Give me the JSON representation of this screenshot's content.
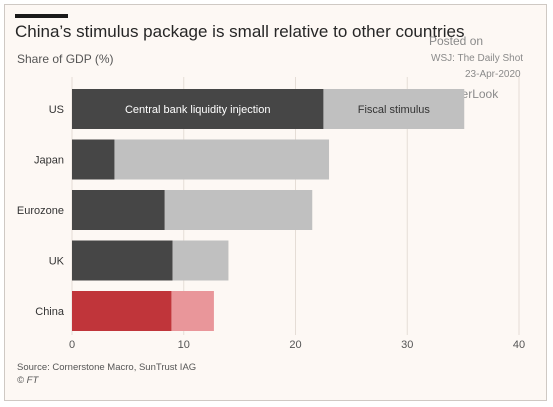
{
  "header": {
    "title": "China’s stimulus package is small relative to other countries",
    "subtitle": "Share of GDP (%)"
  },
  "watermark": {
    "line1": "Posted on",
    "line2": "WSJ: The Daily Shot",
    "line3": "23-Apr-2020",
    "line4": "@SoberLook"
  },
  "footer": {
    "source": "Source: Cornerstone Macro, SunTrust IAG",
    "copyright": "© FT"
  },
  "colors": {
    "cb_default": "#464646",
    "fiscal_default": "#c0c0c0",
    "cb_highlight": "#c0353a",
    "fiscal_highlight": "#e9969a",
    "grid": "#e5ddd6"
  },
  "chart_data": {
    "type": "bar",
    "orientation": "horizontal",
    "stacked": true,
    "categories": [
      "US",
      "Japan",
      "Eurozone",
      "UK",
      "China"
    ],
    "highlight": "China",
    "series": [
      {
        "name": "Central bank liquidity injection",
        "values": [
          22.5,
          3.8,
          8.3,
          9.0,
          8.9
        ]
      },
      {
        "name": "Fiscal stimulus",
        "values": [
          12.6,
          19.2,
          13.2,
          5.0,
          3.8
        ]
      }
    ],
    "xticks": [
      0,
      10,
      20,
      30,
      40
    ],
    "xlim": [
      0,
      40
    ],
    "grid": true,
    "legend": "inline-in-first-bar"
  }
}
